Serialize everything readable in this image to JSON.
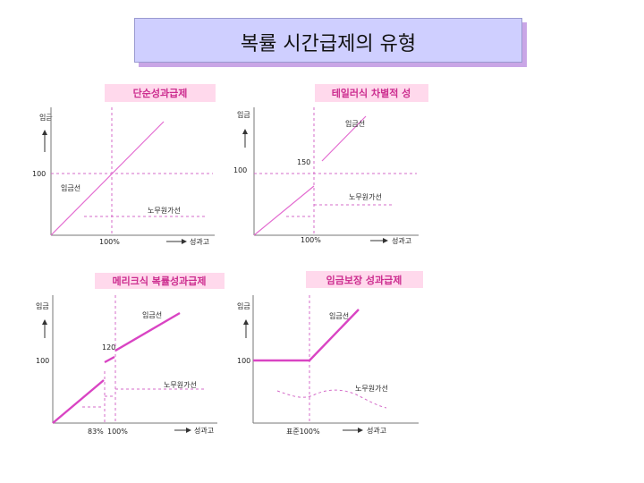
{
  "slide_title": "복률 시간급제의 유형",
  "panels": [
    {
      "title": "단순성과급제",
      "ylabel": "임금",
      "y_tick": "100",
      "x_tick": "100%",
      "xlabel": "성과고",
      "line_label": "임금선",
      "dashed_label": "노무원가선"
    },
    {
      "title": "테일러식 차별적 성",
      "ylabel": "임금",
      "y_tick": "100",
      "mid_value": "150",
      "x_tick": "100%",
      "xlabel": "성과고",
      "line_label": "임금선",
      "dashed_label": "노무원가선"
    },
    {
      "title": "메리크식 복률성과급제",
      "ylabel": "임금",
      "y_tick": "100",
      "mid_value": "120",
      "x_tick_1": "83%",
      "x_tick_2": "100%",
      "xlabel": "성과고",
      "line_label": "임금선",
      "dashed_label": "노무원가선"
    },
    {
      "title": "임금보장 성과급제",
      "ylabel": "임금",
      "y_tick": "100",
      "x_tick": "표준100%",
      "xlabel": "성과고",
      "line_label": "임금선",
      "dashed_label": "노무원가선"
    }
  ]
}
